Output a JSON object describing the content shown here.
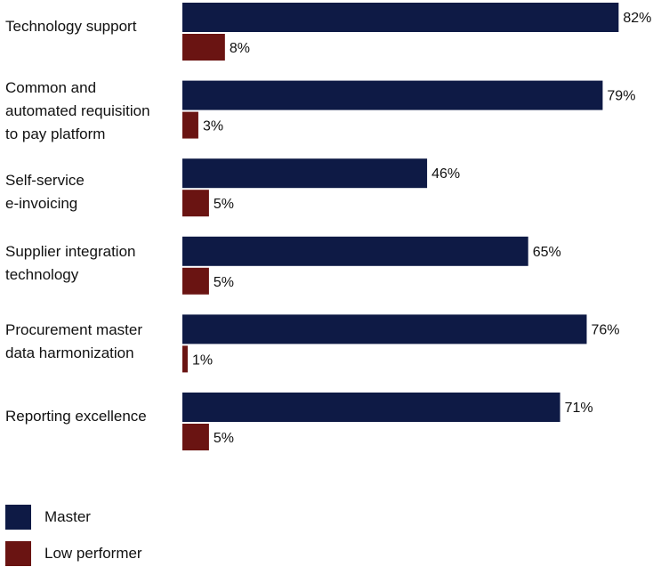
{
  "chart_data": {
    "type": "bar",
    "orientation": "horizontal",
    "categories": [
      "Technology support",
      "Common and\nautomated requisition\nto pay platform",
      "Self-service\ne-invoicing",
      "Supplier integration\ntechnology",
      "Procurement master\ndata harmonization",
      "Reporting excellence"
    ],
    "series": [
      {
        "name": "Master",
        "color": "#0e1a45",
        "values": [
          82,
          79,
          46,
          65,
          76,
          71
        ]
      },
      {
        "name": "Low performer",
        "color": "#6a1412",
        "values": [
          8,
          3,
          5,
          5,
          1,
          5
        ]
      }
    ],
    "value_suffix": "%",
    "xlim": [
      0,
      100
    ],
    "title": "",
    "xlabel": "",
    "ylabel": "",
    "grid": false,
    "legend": "bottom-left"
  }
}
